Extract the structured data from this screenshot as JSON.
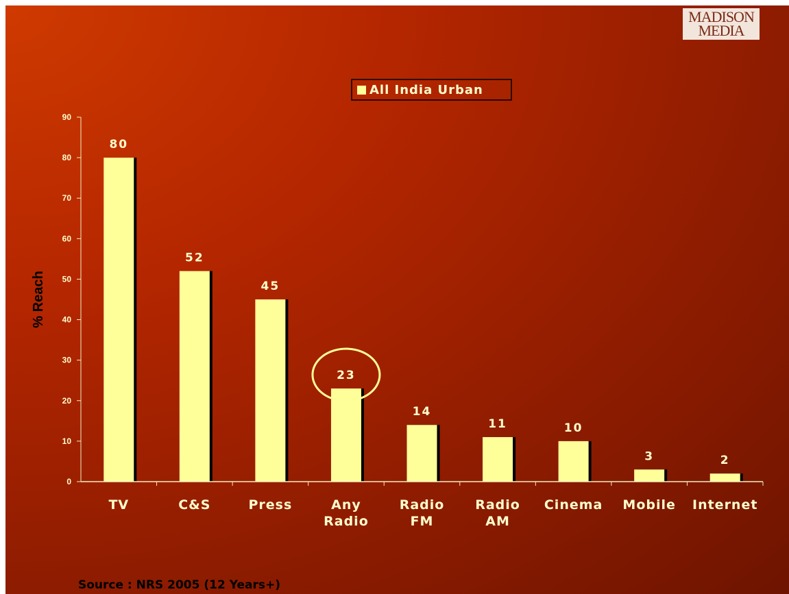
{
  "logo": {
    "line1": "MADISON",
    "line2": "MEDIA"
  },
  "source": "Source : NRS 2005 (12 Years+)",
  "chart_data": {
    "type": "bar",
    "categories": [
      [
        "TV"
      ],
      [
        "C&S"
      ],
      [
        "Press"
      ],
      [
        "Any",
        "Radio"
      ],
      [
        "Radio",
        "FM"
      ],
      [
        "Radio",
        "AM"
      ],
      [
        "Cinema"
      ],
      [
        "Mobile"
      ],
      [
        "Internet"
      ]
    ],
    "series": [
      {
        "name": "All India Urban",
        "values": [
          80,
          52,
          45,
          23,
          14,
          11,
          10,
          3,
          2
        ]
      }
    ],
    "data_labels": [
      "80",
      "52",
      "45",
      "23",
      "14",
      "11",
      "10",
      "3",
      "2"
    ],
    "ylabel": "% Reach",
    "xlabel": "",
    "ylim": [
      0,
      90
    ],
    "yticks": [
      0,
      10,
      20,
      30,
      40,
      50,
      60,
      70,
      80,
      90
    ],
    "highlighted_category_index": 3,
    "legend_position": "top-center",
    "grid": false,
    "colors": {
      "bar": "#ffff99",
      "shadow": "#000000",
      "text": "#ffffcc",
      "highlight": "#ffff99"
    }
  }
}
